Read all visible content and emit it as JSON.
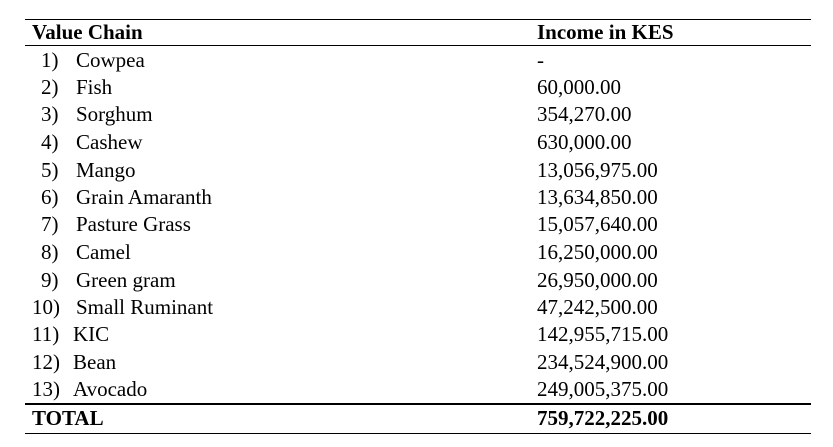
{
  "table": {
    "header": {
      "col1": "Value Chain",
      "col2": "Income in KES"
    },
    "rows": [
      {
        "num": "1)",
        "name": "Cowpea",
        "income": "-"
      },
      {
        "num": "2)",
        "name": "Fish",
        "income": "60,000.00"
      },
      {
        "num": "3)",
        "name": "Sorghum",
        "income": "354,270.00"
      },
      {
        "num": "4)",
        "name": "Cashew",
        "income": "630,000.00"
      },
      {
        "num": "5)",
        "name": "Mango",
        "income": "13,056,975.00"
      },
      {
        "num": "6)",
        "name": "Grain Amaranth",
        "income": "13,634,850.00"
      },
      {
        "num": "7)",
        "name": "Pasture Grass",
        "income": "15,057,640.00"
      },
      {
        "num": "8)",
        "name": "Camel",
        "income": "16,250,000.00"
      },
      {
        "num": "9)",
        "name": "Green gram",
        "income": "26,950,000.00"
      },
      {
        "num": "10)",
        "name": "Small Ruminant",
        "income": "47,242,500.00"
      },
      {
        "num": "11)",
        "name": "KIC",
        "income": "142,955,715.00"
      },
      {
        "num": "12)",
        "name": "Bean",
        "income": "234,524,900.00"
      },
      {
        "num": "13)",
        "name": "Avocado",
        "income": "249,005,375.00"
      }
    ],
    "total": {
      "label": "TOTAL",
      "income": "759,722,225.00"
    }
  }
}
